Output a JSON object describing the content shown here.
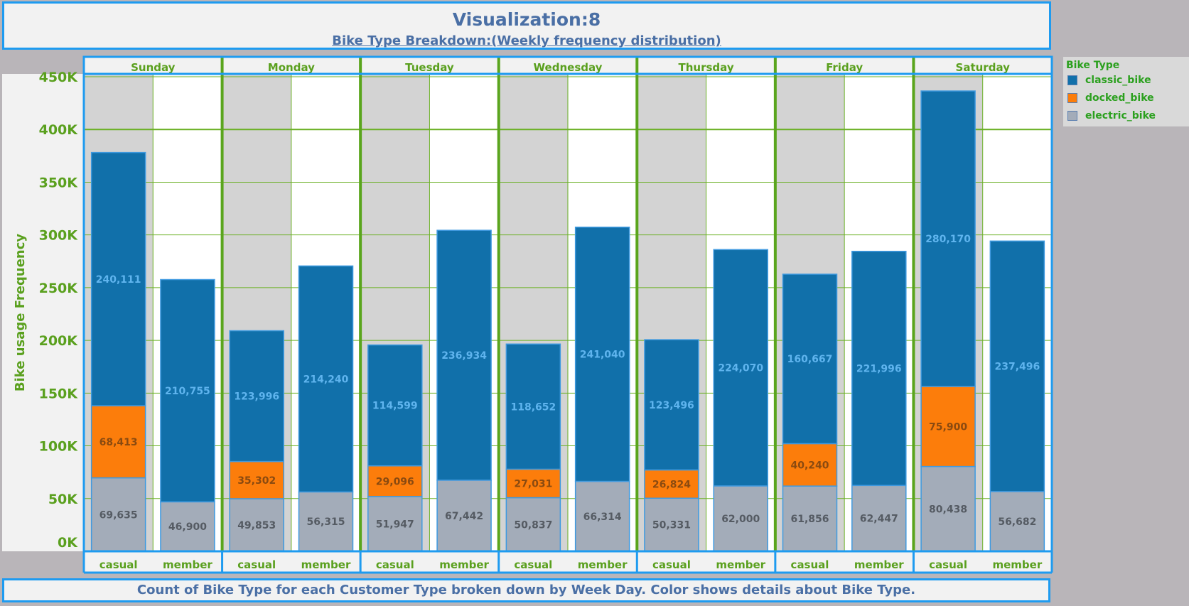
{
  "header": {
    "title": "Visualization:8",
    "subtitle": "Bike Type Breakdown:(Weekly frequency distribution)"
  },
  "footer": {
    "caption": "Count of Bike Type for each Customer Type broken down by Week Day.  Color shows details about Bike Type."
  },
  "legend": {
    "title": "Bike Type",
    "items": [
      {
        "label": "classic_bike",
        "color": "#1170aa"
      },
      {
        "label": "docked_bike",
        "color": "#fc7d0b"
      },
      {
        "label": "electric_bike",
        "color": "#a3acb9"
      }
    ]
  },
  "chart_data": {
    "type": "bar",
    "stacked": true,
    "ylabel": "Bike usage Frequency",
    "ylim": [
      0,
      450000
    ],
    "yticks": [
      {
        "value": 0,
        "label": "0K"
      },
      {
        "value": 50000,
        "label": "50K"
      },
      {
        "value": 100000,
        "label": "100K"
      },
      {
        "value": 150000,
        "label": "150K"
      },
      {
        "value": 200000,
        "label": "200K"
      },
      {
        "value": 250000,
        "label": "250K"
      },
      {
        "value": 300000,
        "label": "300K"
      },
      {
        "value": 350000,
        "label": "350K"
      },
      {
        "value": 400000,
        "label": "400K"
      },
      {
        "value": 450000,
        "label": "450K"
      }
    ],
    "days": [
      "Sunday",
      "Monday",
      "Tuesday",
      "Wednesday",
      "Thursday",
      "Friday",
      "Saturday"
    ],
    "customer_types": [
      "casual",
      "member"
    ],
    "series": [
      {
        "name": "electric_bike",
        "color": "#a3acb9",
        "label_color": "#555b63",
        "values": [
          [
            69635,
            46900
          ],
          [
            49853,
            56315
          ],
          [
            51947,
            67442
          ],
          [
            50837,
            66314
          ],
          [
            50331,
            62000
          ],
          [
            61856,
            62447
          ],
          [
            80438,
            56682
          ]
        ],
        "labels": [
          [
            "69,635",
            "46,900"
          ],
          [
            "49,853",
            "56,315"
          ],
          [
            "51,947",
            "67,442"
          ],
          [
            "50,837",
            "66,314"
          ],
          [
            "50,331",
            "62,000"
          ],
          [
            "61,856",
            "62,447"
          ],
          [
            "80,438",
            "56,682"
          ]
        ]
      },
      {
        "name": "docked_bike",
        "color": "#fc7d0b",
        "label_color": "#8a4a10",
        "values": [
          [
            68413,
            0
          ],
          [
            35302,
            0
          ],
          [
            29096,
            0
          ],
          [
            27031,
            0
          ],
          [
            26824,
            0
          ],
          [
            40240,
            0
          ],
          [
            75900,
            0
          ]
        ],
        "labels": [
          [
            "68,413",
            ""
          ],
          [
            "35,302",
            ""
          ],
          [
            "29,096",
            ""
          ],
          [
            "27,031",
            ""
          ],
          [
            "26,824",
            ""
          ],
          [
            "40,240",
            ""
          ],
          [
            "75,900",
            ""
          ]
        ]
      },
      {
        "name": "classic_bike",
        "color": "#1170aa",
        "label_color": "#5fb4ee",
        "values": [
          [
            240111,
            210755
          ],
          [
            123996,
            214240
          ],
          [
            114599,
            236934
          ],
          [
            118652,
            241040
          ],
          [
            123496,
            224070
          ],
          [
            160667,
            221996
          ],
          [
            280170,
            237496
          ]
        ],
        "labels": [
          [
            "240,111",
            "210,755"
          ],
          [
            "123,996",
            "214,240"
          ],
          [
            "114,599",
            "236,934"
          ],
          [
            "118,652",
            "241,040"
          ],
          [
            "123,496",
            "224,070"
          ],
          [
            "160,667",
            "221,996"
          ],
          [
            "280,170",
            "237,496"
          ]
        ]
      }
    ],
    "colors": {
      "day_text": "#5aa01e",
      "axis_text": "#5aa01e",
      "grid": "#6ab023",
      "pane_divider": "#5aa51d",
      "frame": "#1e9bf0",
      "casual_pane_bg": "#d3d3d3",
      "member_pane_bg": "#ffffff"
    }
  }
}
